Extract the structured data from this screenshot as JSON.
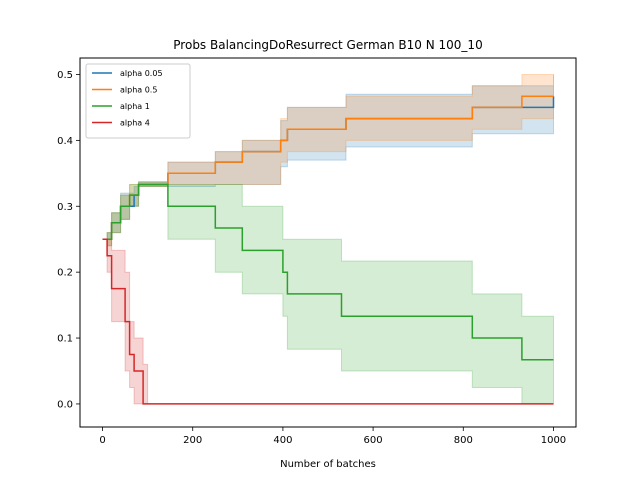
{
  "chart_data": {
    "type": "line",
    "title": "Probs BalancingDoResurrect German B10 N 100_10",
    "xlabel": "Number of batches",
    "ylabel": "",
    "xlim": [
      -50,
      1050
    ],
    "ylim": [
      -0.035,
      0.525
    ],
    "xticks": [
      0,
      200,
      400,
      600,
      800,
      1000
    ],
    "xtick_labels": [
      "0",
      "200",
      "400",
      "600",
      "800",
      "1000"
    ],
    "yticks": [
      0.0,
      0.1,
      0.2,
      0.3,
      0.4,
      0.5
    ],
    "ytick_labels": [
      "0.0",
      "0.1",
      "0.2",
      "0.3",
      "0.4",
      "0.5"
    ],
    "grid": false,
    "legend_position": "top-left",
    "series": [
      {
        "name": "alpha 0.05",
        "color": "#1f77b4",
        "x": [
          0,
          10,
          20,
          30,
          40,
          50,
          60,
          70,
          80,
          90,
          100,
          140,
          145,
          250,
          310,
          370,
          395,
          400,
          410,
          530,
          540,
          820,
          1000
        ],
        "y": [
          0.25,
          0.25,
          0.275,
          0.275,
          0.3,
          0.3,
          0.3,
          0.317,
          0.333,
          0.333,
          0.333,
          0.333,
          0.35,
          0.367,
          0.383,
          0.383,
          0.4,
          0.4,
          0.417,
          0.417,
          0.433,
          0.45,
          0.467
        ],
        "lower": [
          0.25,
          0.25,
          0.26,
          0.26,
          0.28,
          0.28,
          0.3,
          0.3,
          0.33,
          0.33,
          0.33,
          0.33,
          0.33,
          0.333,
          0.333,
          0.333,
          0.36,
          0.36,
          0.37,
          0.37,
          0.39,
          0.41,
          0.433
        ],
        "upper": [
          0.25,
          0.26,
          0.29,
          0.29,
          0.32,
          0.32,
          0.32,
          0.33,
          0.337,
          0.337,
          0.337,
          0.337,
          0.367,
          0.383,
          0.4,
          0.4,
          0.43,
          0.43,
          0.45,
          0.45,
          0.47,
          0.483,
          0.5
        ]
      },
      {
        "name": "alpha 0.5",
        "color": "#ff7f0e",
        "x": [
          0,
          10,
          20,
          30,
          40,
          50,
          60,
          70,
          80,
          90,
          100,
          140,
          145,
          250,
          310,
          370,
          395,
          400,
          410,
          530,
          540,
          820,
          930,
          1000
        ],
        "y": [
          0.25,
          0.25,
          0.275,
          0.275,
          0.3,
          0.3,
          0.317,
          0.317,
          0.333,
          0.333,
          0.333,
          0.333,
          0.35,
          0.367,
          0.383,
          0.383,
          0.4,
          0.4,
          0.417,
          0.417,
          0.433,
          0.45,
          0.467,
          0.467
        ],
        "lower": [
          0.25,
          0.24,
          0.26,
          0.26,
          0.28,
          0.28,
          0.3,
          0.3,
          0.33,
          0.33,
          0.33,
          0.33,
          0.333,
          0.333,
          0.333,
          0.333,
          0.367,
          0.367,
          0.383,
          0.383,
          0.4,
          0.417,
          0.433,
          0.433
        ],
        "upper": [
          0.25,
          0.26,
          0.29,
          0.29,
          0.317,
          0.317,
          0.333,
          0.333,
          0.337,
          0.337,
          0.337,
          0.337,
          0.367,
          0.383,
          0.4,
          0.4,
          0.433,
          0.433,
          0.45,
          0.45,
          0.467,
          0.483,
          0.5,
          0.5
        ]
      },
      {
        "name": "alpha 1",
        "color": "#2ca02c",
        "x": [
          0,
          10,
          20,
          30,
          40,
          50,
          60,
          70,
          80,
          90,
          100,
          140,
          145,
          250,
          310,
          390,
          400,
          410,
          530,
          540,
          820,
          930,
          1000
        ],
        "y": [
          0.25,
          0.25,
          0.275,
          0.275,
          0.3,
          0.3,
          0.317,
          0.317,
          0.333,
          0.333,
          0.333,
          0.333,
          0.3,
          0.267,
          0.233,
          0.233,
          0.2,
          0.167,
          0.133,
          0.133,
          0.1,
          0.067,
          0.067
        ],
        "lower": [
          0.25,
          0.24,
          0.26,
          0.26,
          0.28,
          0.28,
          0.3,
          0.3,
          0.33,
          0.33,
          0.33,
          0.33,
          0.25,
          0.2,
          0.167,
          0.167,
          0.133,
          0.083,
          0.05,
          0.05,
          0.025,
          0.0,
          0.0
        ],
        "upper": [
          0.25,
          0.26,
          0.29,
          0.29,
          0.317,
          0.317,
          0.333,
          0.333,
          0.337,
          0.337,
          0.337,
          0.337,
          0.333,
          0.333,
          0.3,
          0.3,
          0.25,
          0.25,
          0.217,
          0.217,
          0.167,
          0.133,
          0.133
        ]
      },
      {
        "name": "alpha 4",
        "color": "#d62728",
        "x": [
          0,
          10,
          20,
          40,
          50,
          60,
          70,
          80,
          90,
          100,
          1000
        ],
        "y": [
          0.25,
          0.225,
          0.175,
          0.175,
          0.125,
          0.075,
          0.05,
          0.05,
          0.0,
          0.0,
          0.0
        ],
        "lower": [
          0.25,
          0.2,
          0.125,
          0.125,
          0.05,
          0.025,
          0.0,
          0.0,
          0.0,
          0.0,
          0.0
        ],
        "upper": [
          0.25,
          0.25,
          0.233,
          0.233,
          0.2,
          0.125,
          0.1,
          0.1,
          0.06,
          0.0,
          0.0
        ]
      }
    ]
  }
}
